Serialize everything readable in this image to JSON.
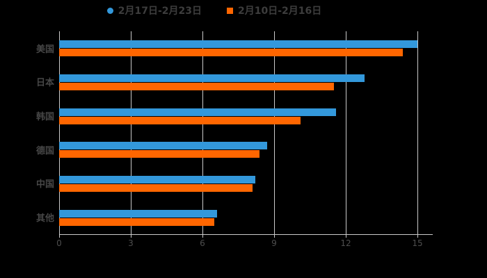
{
  "legend": {
    "items": [
      {
        "label": "2月17日-2月23日",
        "color": "#3398db",
        "marker": "circle"
      },
      {
        "label": "2月10日-2月16日",
        "color": "#ff6600",
        "marker": "square"
      }
    ]
  },
  "chart_data": {
    "type": "bar",
    "orientation": "horizontal",
    "title": "",
    "categories": [
      "美国",
      "日本",
      "韩国",
      "德国",
      "中国",
      "其他"
    ],
    "series": [
      {
        "name": "2月17日-2月23日",
        "color": "#3398db",
        "values": [
          15.0,
          12.8,
          11.6,
          8.7,
          8.2,
          6.6
        ]
      },
      {
        "name": "2月10日-2月16日",
        "color": "#ff6600",
        "values": [
          14.4,
          11.5,
          10.1,
          8.4,
          8.1,
          6.5
        ]
      }
    ],
    "xlabel": "",
    "ylabel": "",
    "xlim": [
      0,
      15
    ],
    "xticks": [
      0,
      3,
      6,
      9,
      12,
      15
    ],
    "grid": true,
    "legend_position": "top",
    "colors": {
      "background": "#000000",
      "gridline": "#cbcbcb",
      "tick_label": "#4e4e4e",
      "category_label": "#474747",
      "legend_text": "#3d3d3d"
    }
  }
}
